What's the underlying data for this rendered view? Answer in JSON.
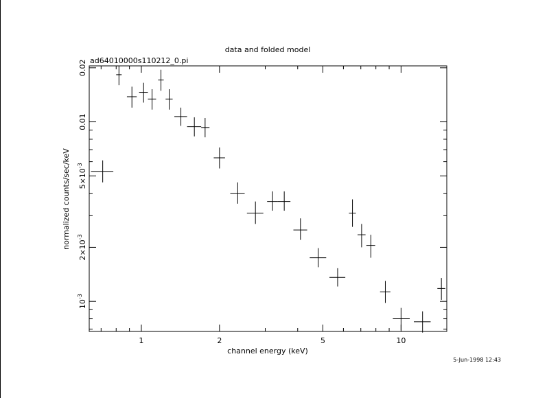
{
  "chart_data": {
    "type": "scatter",
    "title": "data and folded model",
    "subtitle": "ad64010000s110212_0.pi",
    "xlabel": "channel energy (keV)",
    "ylabel": "normalized counts/sec/keV",
    "timestamp": "5-Jun-1998 12:43",
    "x_scale": "log",
    "y_scale": "log",
    "xlim": [
      0.63,
      15.0
    ],
    "ylim": [
      0.00068,
      0.0205
    ],
    "x_ticks": [
      {
        "value": 1,
        "label": "1"
      },
      {
        "value": 2,
        "label": "2"
      },
      {
        "value": 5,
        "label": "5"
      },
      {
        "value": 10,
        "label": "10"
      }
    ],
    "y_ticks": [
      {
        "value": 0.001,
        "label": "10^-3"
      },
      {
        "value": 0.002,
        "label": "2×10^-3"
      },
      {
        "value": 0.005,
        "label": "5×10^-3"
      },
      {
        "value": 0.01,
        "label": "0.01"
      },
      {
        "value": 0.02,
        "label": "0.02"
      }
    ],
    "grid": false,
    "points": [
      {
        "x": 0.71,
        "xerr": [
          0.64,
          0.78
        ],
        "y": 0.0053,
        "yerr": [
          0.0046,
          0.0061
        ]
      },
      {
        "x": 0.82,
        "xerr": [
          0.8,
          0.84
        ],
        "y": 0.0183,
        "yerr": [
          0.016,
          0.0205
        ]
      },
      {
        "x": 0.92,
        "xerr": [
          0.88,
          0.96
        ],
        "y": 0.0138,
        "yerr": [
          0.012,
          0.0157
        ]
      },
      {
        "x": 1.02,
        "xerr": [
          0.98,
          1.06
        ],
        "y": 0.0146,
        "yerr": [
          0.0128,
          0.0165
        ]
      },
      {
        "x": 1.1,
        "xerr": [
          1.06,
          1.14
        ],
        "y": 0.0134,
        "yerr": [
          0.0117,
          0.0152
        ]
      },
      {
        "x": 1.19,
        "xerr": [
          1.16,
          1.22
        ],
        "y": 0.0171,
        "yerr": [
          0.0149,
          0.0195
        ]
      },
      {
        "x": 1.28,
        "xerr": [
          1.24,
          1.32
        ],
        "y": 0.0134,
        "yerr": [
          0.0117,
          0.0152
        ]
      },
      {
        "x": 1.42,
        "xerr": [
          1.34,
          1.5
        ],
        "y": 0.0107,
        "yerr": [
          0.0095,
          0.012
        ]
      },
      {
        "x": 1.6,
        "xerr": [
          1.5,
          1.7
        ],
        "y": 0.0094,
        "yerr": [
          0.0083,
          0.0106
        ]
      },
      {
        "x": 1.76,
        "xerr": [
          1.7,
          1.83
        ],
        "y": 0.0093,
        "yerr": [
          0.0082,
          0.0105
        ]
      },
      {
        "x": 2.0,
        "xerr": [
          1.9,
          2.1
        ],
        "y": 0.0063,
        "yerr": [
          0.0055,
          0.0072
        ]
      },
      {
        "x": 2.35,
        "xerr": [
          2.2,
          2.5
        ],
        "y": 0.004,
        "yerr": [
          0.0035,
          0.0046
        ]
      },
      {
        "x": 2.75,
        "xerr": [
          2.55,
          2.95
        ],
        "y": 0.0031,
        "yerr": [
          0.0027,
          0.0036
        ]
      },
      {
        "x": 3.2,
        "xerr": [
          3.05,
          3.35
        ],
        "y": 0.0036,
        "yerr": [
          0.0032,
          0.0041
        ]
      },
      {
        "x": 3.55,
        "xerr": [
          3.35,
          3.75
        ],
        "y": 0.0036,
        "yerr": [
          0.0032,
          0.0041
        ]
      },
      {
        "x": 4.1,
        "xerr": [
          3.85,
          4.35
        ],
        "y": 0.0025,
        "yerr": [
          0.0022,
          0.0029
        ]
      },
      {
        "x": 4.8,
        "xerr": [
          4.45,
          5.15
        ],
        "y": 0.00175,
        "yerr": [
          0.00155,
          0.00198
        ]
      },
      {
        "x": 5.7,
        "xerr": [
          5.3,
          6.1
        ],
        "y": 0.00136,
        "yerr": [
          0.00121,
          0.00153
        ]
      },
      {
        "x": 6.5,
        "xerr": [
          6.3,
          6.7
        ],
        "y": 0.0031,
        "yerr": [
          0.0026,
          0.0037
        ]
      },
      {
        "x": 7.05,
        "xerr": [
          6.8,
          7.3
        ],
        "y": 0.00235,
        "yerr": [
          0.002,
          0.0027
        ]
      },
      {
        "x": 7.65,
        "xerr": [
          7.35,
          7.95
        ],
        "y": 0.00205,
        "yerr": [
          0.00175,
          0.00235
        ]
      },
      {
        "x": 8.7,
        "xerr": [
          8.3,
          9.1
        ],
        "y": 0.00113,
        "yerr": [
          0.00098,
          0.0013
        ]
      },
      {
        "x": 10.0,
        "xerr": [
          9.3,
          10.8
        ],
        "y": 0.0008,
        "yerr": [
          0.00069,
          0.00092
        ]
      },
      {
        "x": 12.1,
        "xerr": [
          11.2,
          13.0
        ],
        "y": 0.00077,
        "yerr": [
          0.00067,
          0.00088
        ]
      },
      {
        "x": 14.3,
        "xerr": [
          13.8,
          14.8
        ],
        "y": 0.00118,
        "yerr": [
          0.00102,
          0.00135
        ]
      }
    ]
  }
}
